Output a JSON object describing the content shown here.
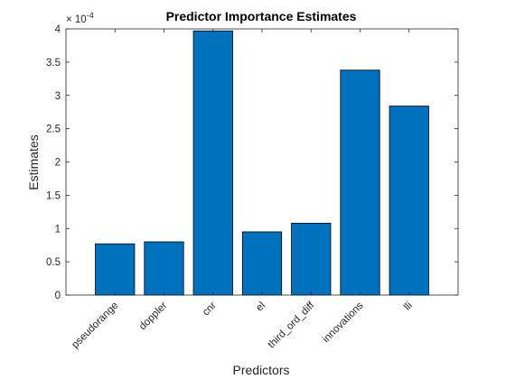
{
  "chart_data": {
    "type": "bar",
    "title": "Predictor Importance Estimates",
    "xlabel": "Predictors",
    "ylabel": "Estimates",
    "categories": [
      "pseudorange",
      "doppler",
      "cnr",
      "el",
      "third_ord_diff",
      "innovations",
      "lli"
    ],
    "values": [
      7.7e-05,
      8e-05,
      0.000397,
      9.5e-05,
      0.000108,
      0.000338,
      0.000284
    ],
    "ylim": [
      0,
      0.0004
    ],
    "yticks": [
      0,
      5e-05,
      0.0001,
      0.00015,
      0.0002,
      0.00025,
      0.0003,
      0.00035,
      0.0004
    ],
    "ytick_labels": [
      "0",
      "0.5",
      "1",
      "1.5",
      "2",
      "2.5",
      "3",
      "3.5",
      "4"
    ],
    "y_exponent_label": "× 10",
    "y_exponent_value": "-4",
    "bar_color": "#0072BD",
    "grid": false,
    "legend": "none"
  }
}
